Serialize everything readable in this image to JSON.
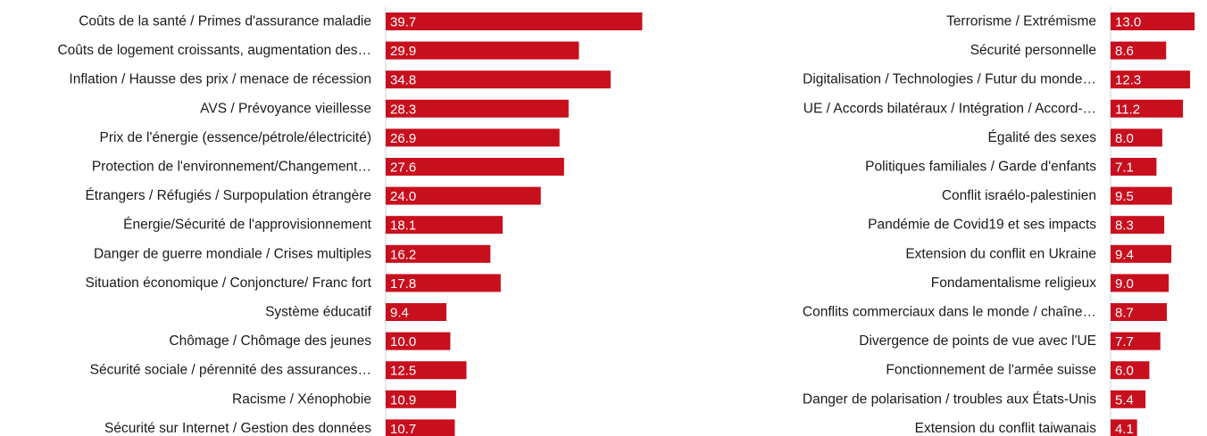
{
  "colors": {
    "bar": "#c80f1e",
    "label_text": "#1a1a1a",
    "value_text": "#ffffff"
  },
  "chart_data": [
    {
      "type": "bar",
      "orientation": "horizontal",
      "xlim": [
        0,
        50
      ],
      "grid": false,
      "categories": [
        "Coûts de la santé / Primes d'assurance maladie",
        "Coûts de logement croissants, augmentation des…",
        "Inflation / Hausse des prix / menace de récession",
        "AVS / Prévoyance vieillesse",
        "Prix de l'énergie (essence/pétrole/électricité)",
        "Protection de l'environnement/Changement…",
        "Étrangers / Réfugiés / Surpopulation étrangère",
        "Énergie/Sécurité de l'approvisionnement",
        "Danger de guerre mondiale / Crises multiples",
        "Situation économique / Conjoncture/ Franc fort",
        "Système éducatif",
        "Chômage / Chômage des jeunes",
        "Sécurité sociale / pérennité des assurances…",
        "Racisme / Xénophobie",
        "Sécurité sur Internet / Gestion des données"
      ],
      "values": [
        39.7,
        29.9,
        34.8,
        28.3,
        26.9,
        27.6,
        24.0,
        18.1,
        16.2,
        17.8,
        9.4,
        10.0,
        12.5,
        10.9,
        10.7
      ],
      "value_labels": [
        "39.7",
        "29.9",
        "34.8",
        "28.3",
        "26.9",
        "27.6",
        "24.0",
        "18.1",
        "16.2",
        "17.8",
        "9.4",
        "10.0",
        "12.5",
        "10.9",
        "10.7"
      ]
    },
    {
      "type": "bar",
      "orientation": "horizontal",
      "xlim": [
        0,
        50
      ],
      "grid": false,
      "categories": [
        "Terrorisme / Extrémisme",
        "Sécurité personnelle",
        "Digitalisation / Technologies / Futur du monde…",
        "UE / Accords bilatéraux / Intégration / Accord-…",
        "Égalité des sexes",
        "Politiques familiales / Garde d'enfants",
        "Conflit israélo-palestinien",
        "Pandémie de Covid19 et ses impacts",
        "Extension du conflit en Ukraine",
        "Fondamentalisme religieux",
        "Conflits commerciaux dans le monde / chaîne…",
        "Divergence de points de vue avec  l'UE",
        "Fonctionnement de l'armée suisse",
        "Danger de polarisation / troubles aux États-Unis",
        "Extension du conflit taiwanais"
      ],
      "values": [
        13.0,
        8.6,
        12.3,
        11.2,
        8.0,
        7.1,
        9.5,
        8.3,
        9.4,
        9.0,
        8.7,
        7.7,
        6.0,
        5.4,
        4.1
      ],
      "value_labels": [
        "13.0",
        "8.6",
        "12.3",
        "11.2",
        "8.0",
        "7.1",
        "9.5",
        "8.3",
        "9.4",
        "9.0",
        "8.7",
        "7.7",
        "6.0",
        "5.4",
        "4.1"
      ]
    }
  ]
}
